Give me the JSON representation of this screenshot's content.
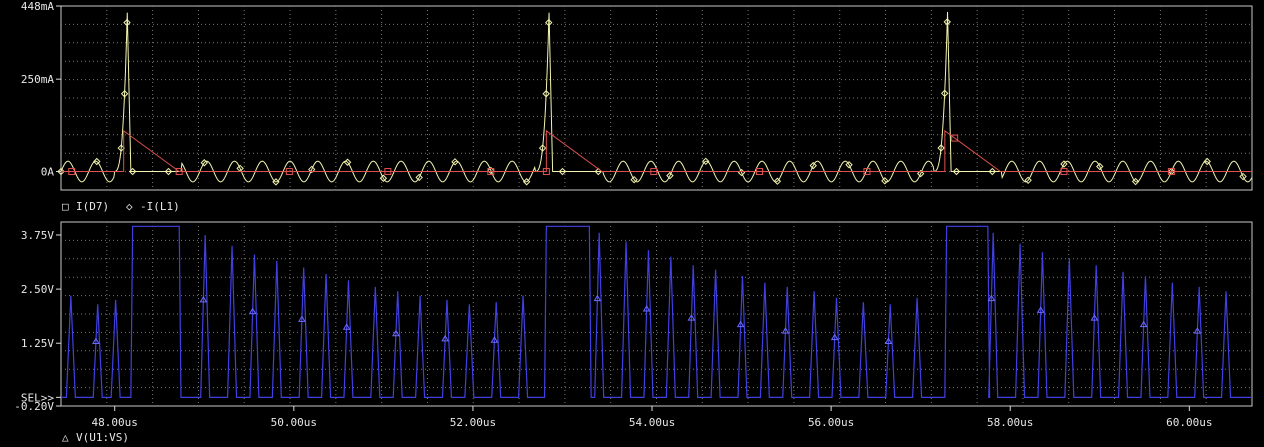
{
  "chart_data": [
    {
      "type": "line",
      "panel": "top",
      "yticks": [
        "448mA",
        "250mA",
        "0A"
      ],
      "ytick_values": [
        448,
        250,
        0
      ],
      "ylim": [
        -50,
        448
      ],
      "xlim": [
        47.4,
        60.7
      ],
      "grid": true,
      "legend": {
        "items": [
          {
            "marker": "□",
            "name": "I(D7)",
            "color": "#e05050"
          },
          {
            "marker": "◇",
            "name": "-I(L1)",
            "color": "#f4f4b0"
          }
        ]
      },
      "series": [
        {
          "name": "I(D7)",
          "color": "#e05050",
          "pulses": [
            {
              "start": 48.1,
              "peak": 110,
              "end": 48.72
            },
            {
              "start": 52.82,
              "peak": 110,
              "end": 53.44
            },
            {
              "start": 57.27,
              "peak": 110,
              "end": 57.89
            }
          ]
        },
        {
          "name": "-I(L1)",
          "color": "#f4f4b0",
          "spikes": [
            {
              "start": 47.99,
              "peak_time": 48.14,
              "peak": 430
            },
            {
              "start": 52.69,
              "peak_time": 52.85,
              "peak": 430
            },
            {
              "start": 57.14,
              "peak_time": 57.3,
              "peak": 432
            }
          ],
          "ripple_amplitude": 28,
          "ripple_period_us": 0.31
        }
      ]
    },
    {
      "type": "line",
      "panel": "bottom",
      "yticks": [
        "3.75V",
        "2.50V",
        "1.25V",
        "SEL>>",
        "-0.20V"
      ],
      "ytick_values": [
        3.75,
        2.5,
        1.25,
        0,
        -0.2
      ],
      "ylim": [
        -0.2,
        4.05
      ],
      "xlim": [
        47.4,
        60.7
      ],
      "grid": true,
      "xticks": [
        "48.00us",
        "50.00us",
        "52.00us",
        "54.00us",
        "56.00us",
        "58.00us",
        "60.00us"
      ],
      "xtick_values": [
        48,
        50,
        52,
        54,
        56,
        58,
        60
      ],
      "legend": {
        "items": [
          {
            "marker": "△",
            "name": "V(U1:VS)",
            "color": "#5050ff"
          }
        ]
      },
      "series": [
        {
          "name": "V(U1:VS)",
          "color": "#4040e0",
          "plateaus": [
            {
              "start": 48.2,
              "end": 48.72,
              "value": 3.95
            },
            {
              "start": 52.82,
              "end": 53.3,
              "value": 3.95
            },
            {
              "start": 57.29,
              "end": 57.75,
              "value": 3.95
            }
          ],
          "pulse_peaks": [
            {
              "t": 47.52,
              "v": 2.35
            },
            {
              "t": 47.82,
              "v": 2.15
            },
            {
              "t": 48.02,
              "v": 2.25
            },
            {
              "t": 49.02,
              "v": 3.75
            },
            {
              "t": 49.32,
              "v": 3.5
            },
            {
              "t": 49.57,
              "v": 3.3
            },
            {
              "t": 49.82,
              "v": 3.15
            },
            {
              "t": 50.12,
              "v": 3.0
            },
            {
              "t": 50.37,
              "v": 2.85
            },
            {
              "t": 50.62,
              "v": 2.7
            },
            {
              "t": 50.92,
              "v": 2.55
            },
            {
              "t": 51.17,
              "v": 2.45
            },
            {
              "t": 51.42,
              "v": 2.35
            },
            {
              "t": 51.72,
              "v": 2.25
            },
            {
              "t": 51.97,
              "v": 2.15
            },
            {
              "t": 52.27,
              "v": 2.2
            },
            {
              "t": 52.57,
              "v": 2.35
            },
            {
              "t": 53.42,
              "v": 3.8
            },
            {
              "t": 53.72,
              "v": 3.6
            },
            {
              "t": 53.97,
              "v": 3.4
            },
            {
              "t": 54.22,
              "v": 3.25
            },
            {
              "t": 54.47,
              "v": 3.05
            },
            {
              "t": 54.72,
              "v": 2.95
            },
            {
              "t": 55.02,
              "v": 2.8
            },
            {
              "t": 55.27,
              "v": 2.65
            },
            {
              "t": 55.52,
              "v": 2.55
            },
            {
              "t": 55.82,
              "v": 2.45
            },
            {
              "t": 56.07,
              "v": 2.3
            },
            {
              "t": 56.37,
              "v": 2.2
            },
            {
              "t": 56.67,
              "v": 2.15
            },
            {
              "t": 56.97,
              "v": 2.3
            },
            {
              "t": 57.82,
              "v": 3.8
            },
            {
              "t": 58.12,
              "v": 3.55
            },
            {
              "t": 58.37,
              "v": 3.35
            },
            {
              "t": 58.67,
              "v": 3.2
            },
            {
              "t": 58.97,
              "v": 3.05
            },
            {
              "t": 59.27,
              "v": 2.9
            },
            {
              "t": 59.52,
              "v": 2.8
            },
            {
              "t": 59.82,
              "v": 2.65
            },
            {
              "t": 60.12,
              "v": 2.55
            },
            {
              "t": 60.42,
              "v": 2.45
            }
          ]
        }
      ]
    }
  ]
}
